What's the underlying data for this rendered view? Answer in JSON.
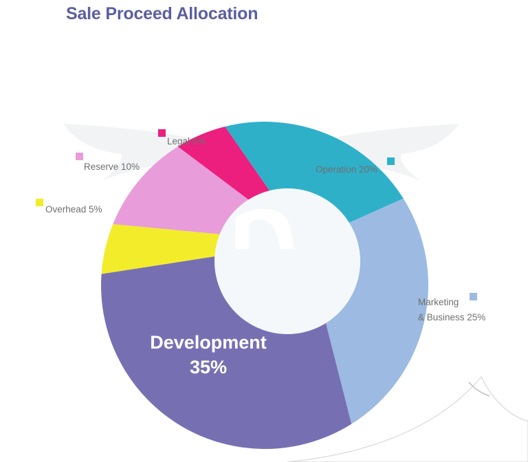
{
  "title": "Sale Proceed Allocation",
  "chart_data": {
    "type": "pie",
    "title": "Sale Proceed Allocation",
    "slices": [
      {
        "label": "Operation 20%",
        "value": 20,
        "color": "#2fb0c9"
      },
      {
        "label": "Marketing & Business 25%",
        "label_lines": [
          "Marketing",
          "& Business 25%"
        ],
        "value": 25,
        "color": "#9cbae2"
      },
      {
        "label": "Development 35%",
        "label_lines": [
          "Development",
          "35%"
        ],
        "value": 35,
        "color": "#7670b3"
      },
      {
        "label": "Overhead 5%",
        "value": 5,
        "color": "#f3ec2b"
      },
      {
        "label": "Reserve 10%",
        "value": 10,
        "color": "#e89cd9"
      },
      {
        "label": "Legal 5%",
        "value": 5,
        "color": "#ec1e7e"
      }
    ],
    "legend": "labels beside slices",
    "hole": "donut"
  }
}
